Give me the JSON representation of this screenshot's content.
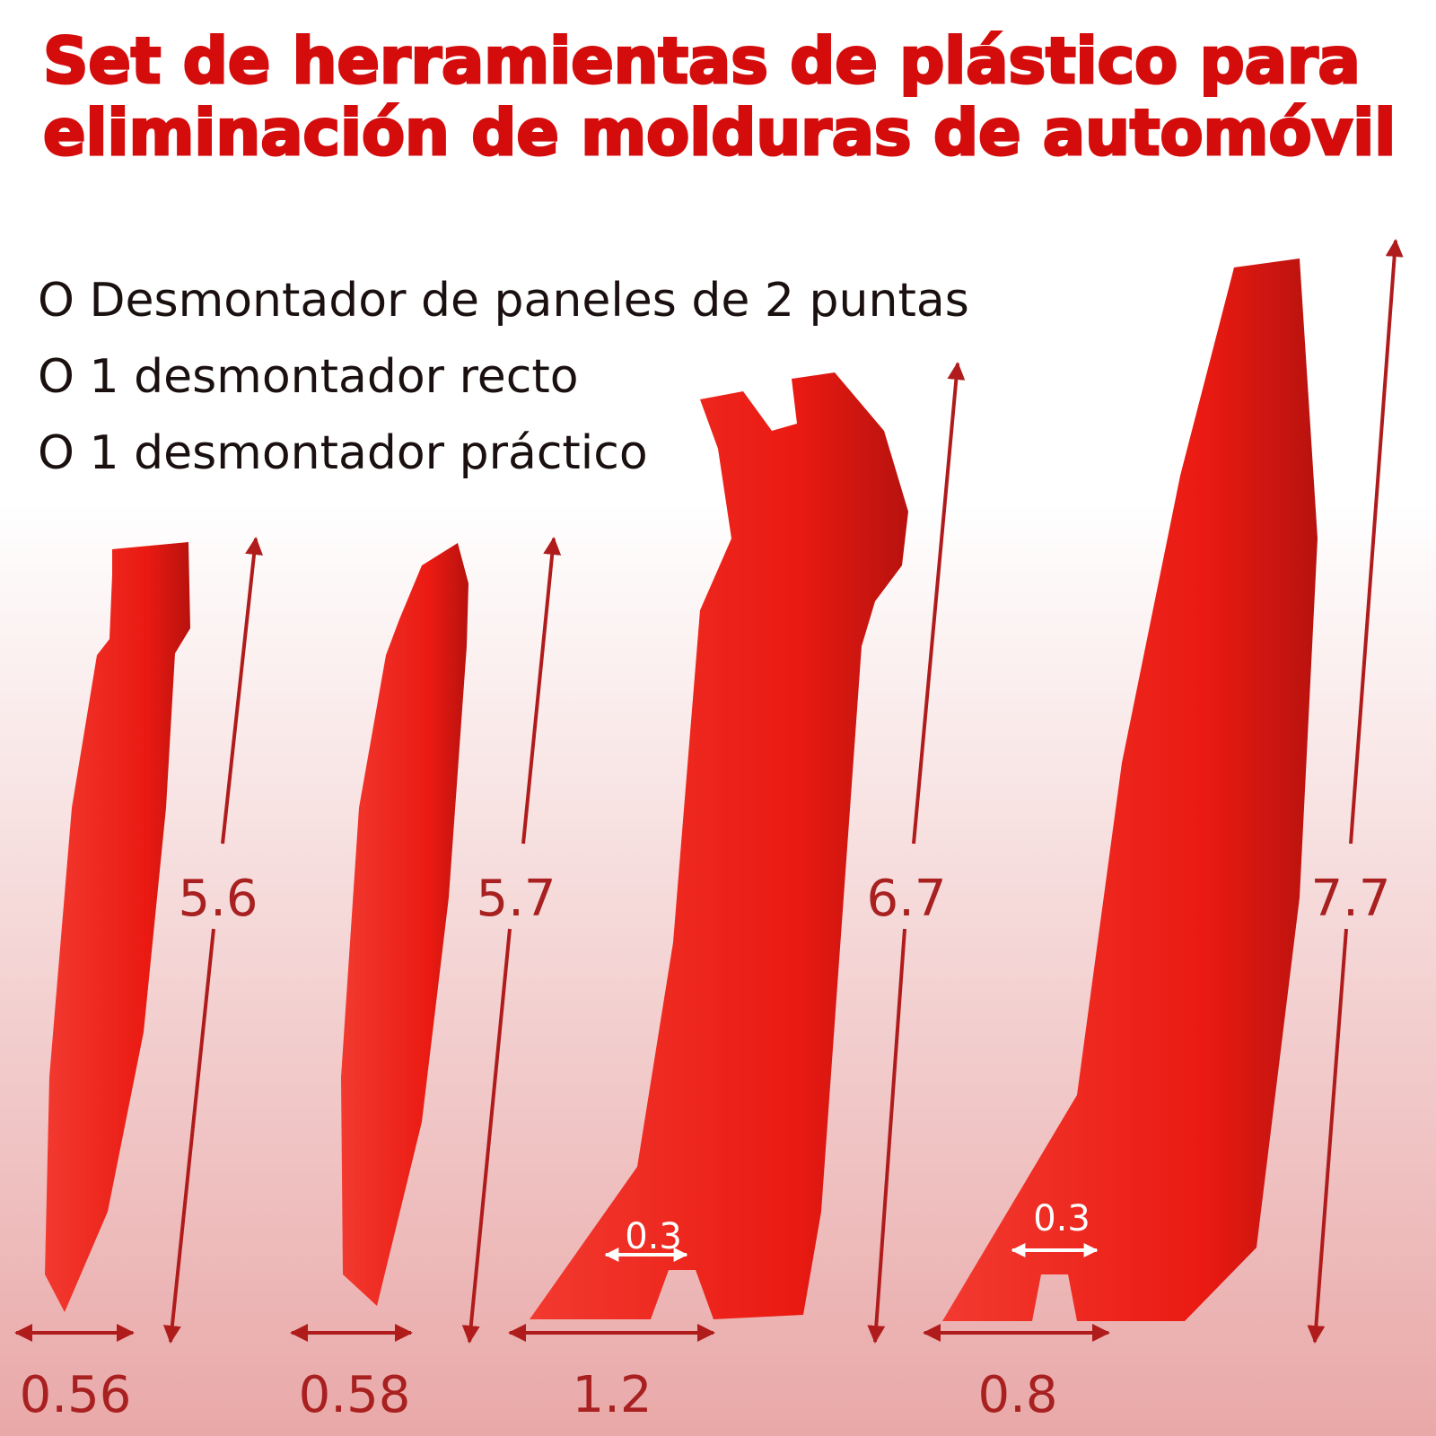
{
  "header": {
    "title": [
      "Set de herramientas de plástico para",
      "eliminación de molduras de automóvil"
    ]
  },
  "items": [
    "O Desmontador de paneles de 2 puntas",
    "O 1 desmontador recto",
    "O 1 desmontador práctico"
  ],
  "tools": [
    {
      "height": "5.6",
      "width": "0.56"
    },
    {
      "height": "5.7",
      "width": "0.58"
    },
    {
      "height": "6.7",
      "width": "1.2",
      "slot": "0.3"
    },
    {
      "height": "7.7",
      "width": "0.8",
      "slot": "0.3"
    }
  ]
}
